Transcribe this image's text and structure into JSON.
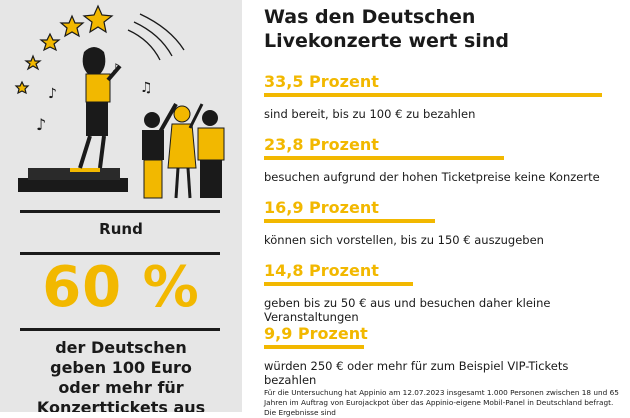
{
  "left": {
    "rund": "Rund",
    "big": "60 %",
    "text": "der Deutschen\ngeben 100 Euro\noder mehr für\nKonzerttickets aus"
  },
  "title": "Was den Deutschen\nLivekonzerte wert sind",
  "colors": {
    "accent": "#f2b800",
    "panel": "#e6e6e6",
    "text": "#1a1a1a"
  },
  "chart_data": {
    "type": "bar",
    "orientation": "horizontal",
    "title": "Was den Deutschen Livekonzerte wert sind",
    "unit": "Prozent",
    "xlim": [
      0,
      33.5
    ],
    "items": [
      {
        "value": 33.5,
        "label": "33,5 Prozent",
        "desc": "sind bereit, bis zu 100 € zu bezahlen"
      },
      {
        "value": 23.8,
        "label": "23,8 Prozent",
        "desc": "besuchen aufgrund der hohen Ticketpreise keine Konzerte"
      },
      {
        "value": 16.9,
        "label": "16,9 Prozent",
        "desc": "können sich vorstellen, bis zu 150 € auszugeben"
      },
      {
        "value": 14.8,
        "label": "14,8 Prozent",
        "desc": "geben bis zu 50 € aus und besuchen daher kleine Veranstaltungen"
      },
      {
        "value": 9.9,
        "label": "9,9 Prozent",
        "desc": "würden 250 € oder mehr für zum Beispiel VIP-Tickets bezahlen"
      }
    ]
  },
  "footnote": "Für die Untersuchung hat Appinio am 12.07.2023 insgesamt 1.000 Personen zwischen 18 und 65 Jahren im Auftrag von Eurojackpot über das Appinio-eigene Mobil-Panel in Deutschland befragt. Die Ergebnisse sind"
}
